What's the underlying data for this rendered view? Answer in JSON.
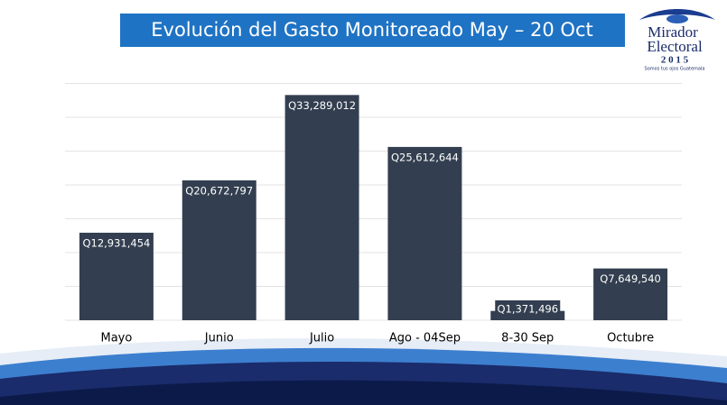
{
  "chart_data": {
    "type": "bar",
    "title": "Evolución del Gasto Monitoreado May – 20 Oct",
    "categories": [
      "Mayo",
      "Junio",
      "Julio",
      "Ago - 04Sep",
      "8-30 Sep",
      "Octubre"
    ],
    "values": [
      12931454,
      20672797,
      33289012,
      25612644,
      1371496,
      7649540
    ],
    "value_labels": [
      "Q12,931,454",
      "Q20,672,797",
      "Q33,289,012",
      "Q25,612,644",
      "Q1,371,496",
      "Q7,649,540"
    ],
    "color": "#333f50",
    "ylim": [
      0,
      35000000
    ],
    "yticks": [
      0,
      5000000,
      10000000,
      15000000,
      20000000,
      25000000,
      30000000,
      35000000
    ],
    "grid": true
  },
  "logo": {
    "name_line1": "Mirador",
    "name_line2": "Electoral",
    "year": "2 0 1 5",
    "tagline": "Somos tus ojos Guatemala"
  }
}
